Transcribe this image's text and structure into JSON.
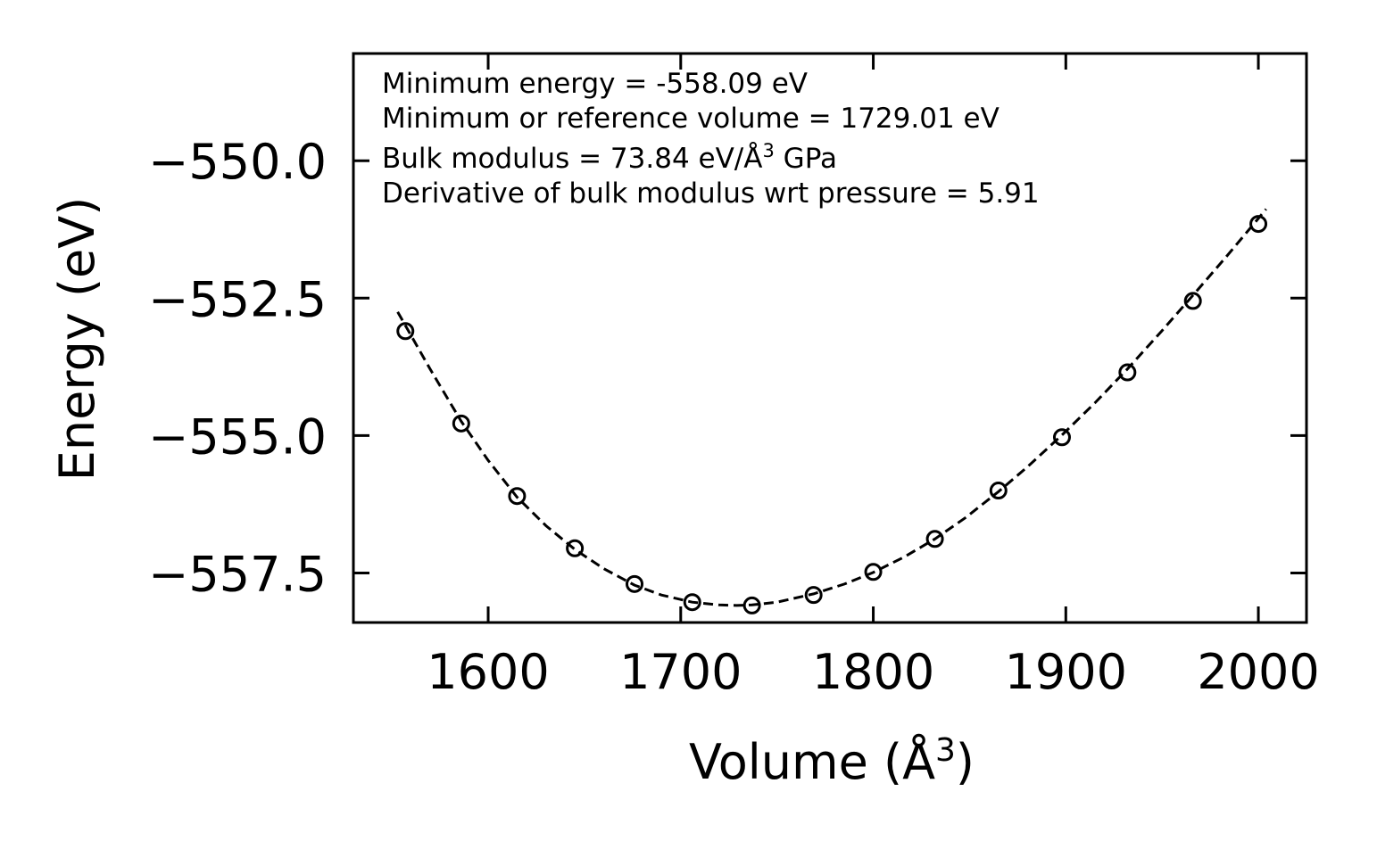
{
  "chart_data": {
    "type": "scatter",
    "title": "",
    "xlabel": "Volume (Å",
    "xlabel_sup": "3",
    "xlabel_end": ")",
    "ylabel": "Energy (eV)",
    "xlim": [
      1530,
      2025
    ],
    "ylim": [
      -558.4,
      -548.05
    ],
    "xticks": [
      1600,
      1700,
      1800,
      1900,
      2000
    ],
    "xtick_labels": [
      "1600",
      "1700",
      "1800",
      "1900",
      "2000"
    ],
    "yticks": [
      -550.0,
      -552.5,
      -555.0,
      -557.5
    ],
    "ytick_labels": [
      "−550.0",
      "−552.5",
      "−555.0",
      "−557.5"
    ],
    "series": [
      {
        "name": "data",
        "style": "open-circle",
        "x": [
          1557,
          1586,
          1615,
          1645,
          1676,
          1706,
          1737,
          1769,
          1800,
          1832,
          1865,
          1898,
          1932,
          1966,
          2000
        ],
        "y": [
          -553.1,
          -554.78,
          -556.1,
          -557.05,
          -557.7,
          -558.03,
          -558.09,
          -557.9,
          -557.48,
          -556.88,
          -556.0,
          -555.03,
          -553.85,
          -552.55,
          -551.15
        ]
      },
      {
        "name": "fit",
        "style": "dashed-line",
        "x": [
          1553,
          1570,
          1586,
          1600,
          1615,
          1630,
          1645,
          1660,
          1676,
          1690,
          1706,
          1720,
          1729,
          1737,
          1750,
          1769,
          1785,
          1800,
          1816,
          1832,
          1848,
          1865,
          1880,
          1898,
          1915,
          1932,
          1950,
          1966,
          1983,
          2000,
          2004
        ],
        "y": [
          -552.75,
          -553.8,
          -554.74,
          -555.45,
          -556.12,
          -556.64,
          -557.07,
          -557.42,
          -557.72,
          -557.9,
          -558.03,
          -558.08,
          -558.09,
          -558.08,
          -558.03,
          -557.88,
          -557.7,
          -557.49,
          -557.21,
          -556.88,
          -556.49,
          -556.02,
          -555.57,
          -554.99,
          -554.41,
          -553.79,
          -553.09,
          -552.45,
          -551.76,
          -551.05,
          -550.88
        ]
      }
    ],
    "annotations": [
      "Minimum energy = -558.09 eV",
      "Minimum or reference volume = 1729.01 eV",
      "Bulk modulus = 73.84 eV/Å",
      "3",
      " GPa",
      "Derivative of bulk modulus wrt pressure = 5.91"
    ],
    "legend": "none",
    "grid": false
  }
}
